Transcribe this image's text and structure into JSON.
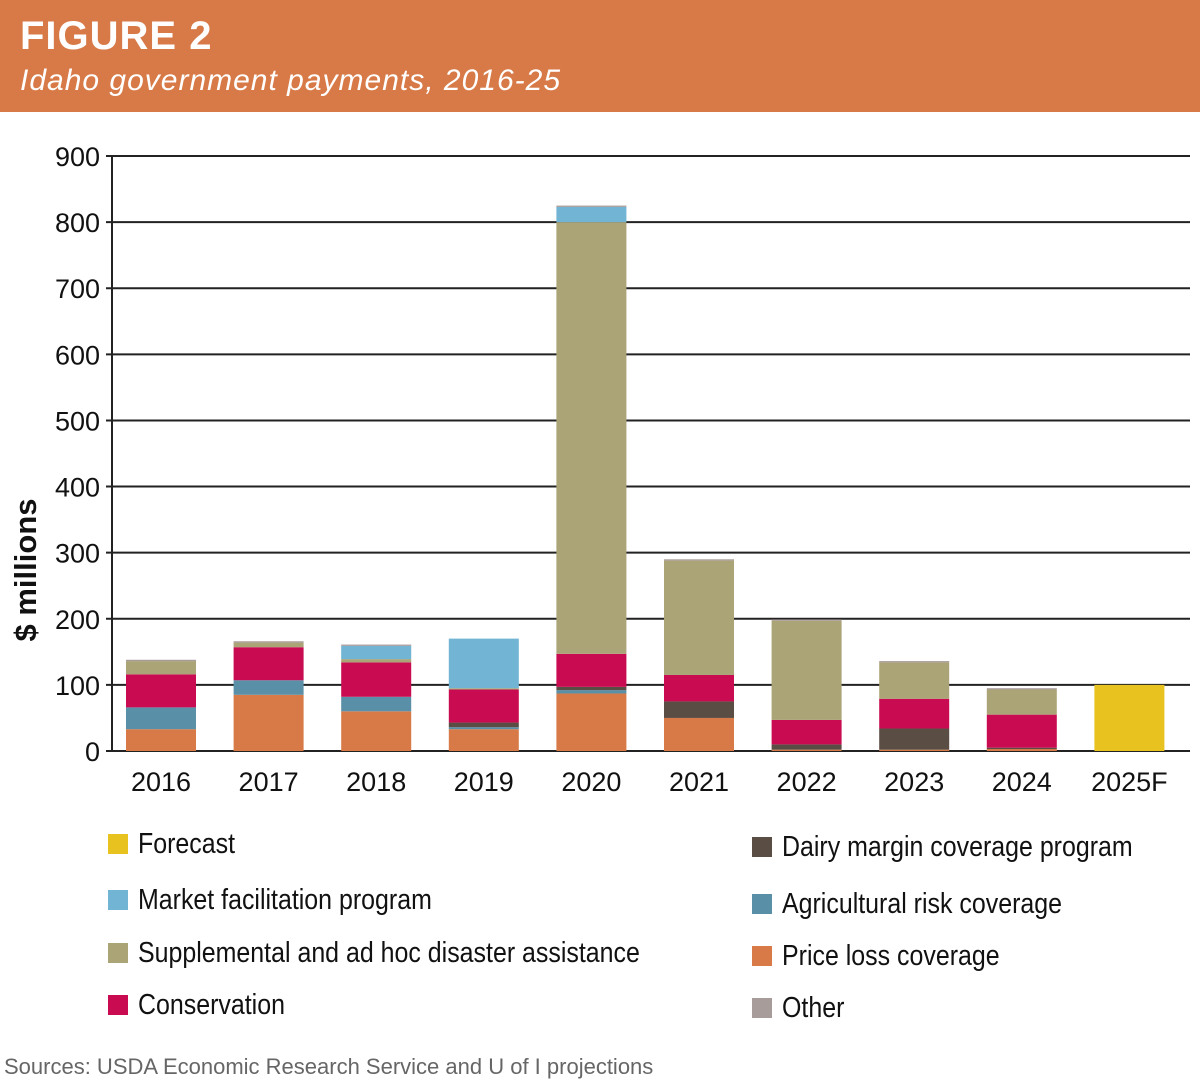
{
  "header": {
    "figure_label": "FIGURE 2",
    "title": "Idaho government payments, 2016-25"
  },
  "chart_data": {
    "type": "bar",
    "stacked": true,
    "title": "Idaho government payments, 2016-25",
    "xlabel": "",
    "ylabel": "$ millions",
    "ylim": [
      0,
      900
    ],
    "yticks": [
      0,
      100,
      200,
      300,
      400,
      500,
      600,
      700,
      800,
      900
    ],
    "grid": true,
    "categories": [
      "2016",
      "2017",
      "2018",
      "2019",
      "2020",
      "2021",
      "2022",
      "2023",
      "2024",
      "2025F"
    ],
    "series": [
      {
        "name": "Price loss coverage",
        "color": "#d77a47",
        "values": [
          33,
          85,
          60,
          33,
          87,
          50,
          2,
          2,
          3,
          0
        ]
      },
      {
        "name": "Agricultural risk coverage",
        "color": "#5a8fa8",
        "values": [
          33,
          22,
          22,
          3,
          5,
          0,
          0,
          0,
          0,
          0
        ]
      },
      {
        "name": "Dairy margin coverage program",
        "color": "#5a4d44",
        "values": [
          0,
          0,
          0,
          7,
          5,
          25,
          8,
          32,
          2,
          0
        ]
      },
      {
        "name": "Conservation",
        "color": "#c90c52",
        "values": [
          50,
          50,
          52,
          50,
          50,
          40,
          37,
          45,
          50,
          0
        ]
      },
      {
        "name": "Supplemental and ad hoc disaster assistance",
        "color": "#aba476",
        "values": [
          20,
          7,
          5,
          2,
          653,
          173,
          150,
          55,
          38,
          0
        ]
      },
      {
        "name": "Market facilitation program",
        "color": "#72b4d4",
        "values": [
          0,
          0,
          20,
          75,
          23,
          0,
          0,
          0,
          0,
          0
        ]
      },
      {
        "name": "Other",
        "color": "#a89c9a",
        "values": [
          2,
          2,
          2,
          0,
          2,
          2,
          2,
          2,
          2,
          0
        ]
      },
      {
        "name": "Forecast",
        "color": "#e8c21f",
        "values": [
          0,
          0,
          0,
          0,
          0,
          0,
          0,
          0,
          0,
          100
        ]
      }
    ],
    "legend": {
      "placement": "bottom",
      "left_column": [
        "Forecast",
        "Market facilitation program",
        "Supplemental and ad hoc disaster assistance",
        "Conservation"
      ],
      "right_column": [
        "Dairy margin coverage program",
        "Agricultural risk coverage",
        "Price loss coverage",
        "Other"
      ]
    }
  },
  "legend_labels": {
    "forecast": "Forecast",
    "market_facilitation": "Market facilitation program",
    "supplemental": "Supplemental and ad hoc disaster assistance",
    "conservation": "Conservation",
    "dairy": "Dairy margin coverage program",
    "arc": "Agricultural risk coverage",
    "plc": "Price loss coverage",
    "other": "Other"
  },
  "colors": {
    "header_bg": "#d77a47",
    "forecast": "#e8c21f",
    "market_facilitation": "#72b4d4",
    "supplemental": "#aba476",
    "conservation": "#c90c52",
    "dairy": "#5a4d44",
    "arc": "#5a8fa8",
    "plc": "#d77a47",
    "other": "#a89c9a"
  },
  "source": "Sources: USDA Economic Research Service and U of I projections"
}
